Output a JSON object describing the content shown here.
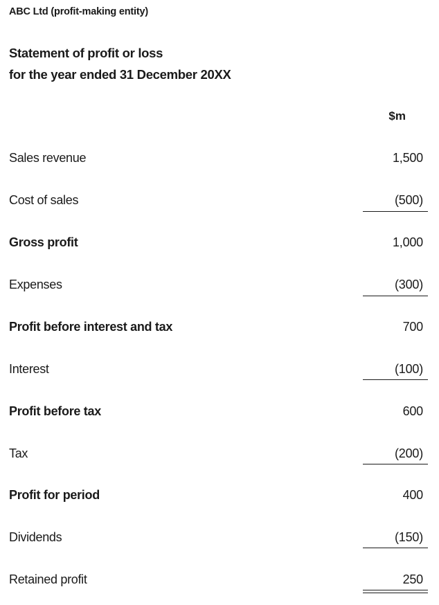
{
  "header": {
    "entity": "ABC Ltd (profit-making entity)",
    "title_line1": "Statement of profit or loss",
    "title_line2": "for the year ended 31 December 20XX",
    "currency": "$m"
  },
  "rows": [
    {
      "label": "Sales revenue",
      "amount": "1,500"
    },
    {
      "label": "Cost of sales",
      "amount": "(500)"
    },
    {
      "label": "Gross profit",
      "amount": "1,000"
    },
    {
      "label": "Expenses",
      "amount": "(300)"
    },
    {
      "label": "Profit before interest and tax",
      "amount": "700"
    },
    {
      "label": "Interest",
      "amount": "(100)"
    },
    {
      "label": "Profit before tax",
      "amount": "600"
    },
    {
      "label": "Tax",
      "amount": "(200)"
    },
    {
      "label": "Profit for period",
      "amount": "400"
    },
    {
      "label": "Dividends",
      "amount": "(150)"
    },
    {
      "label": "Retained profit",
      "amount": "250"
    }
  ]
}
